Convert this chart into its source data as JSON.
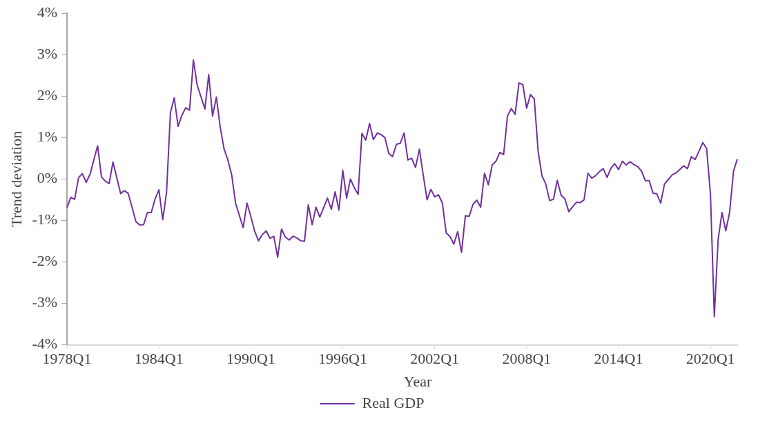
{
  "chart_data": {
    "type": "line",
    "xlabel": "Year",
    "ylabel": "Trend deviation",
    "categories": [
      "1978Q1",
      null,
      null,
      null,
      null,
      null,
      null,
      null,
      null,
      null,
      null,
      null,
      null,
      null,
      null,
      null,
      null,
      null,
      null,
      null,
      null,
      null,
      null,
      null,
      "1984Q1",
      null,
      null,
      null,
      null,
      null,
      null,
      null,
      null,
      null,
      null,
      null,
      null,
      null,
      null,
      null,
      null,
      null,
      null,
      null,
      null,
      null,
      null,
      null,
      "1990Q1",
      null,
      null,
      null,
      null,
      null,
      null,
      null,
      null,
      null,
      null,
      null,
      null,
      null,
      null,
      null,
      null,
      null,
      null,
      null,
      null,
      null,
      null,
      null,
      "1996Q1",
      null,
      null,
      null,
      null,
      null,
      null,
      null,
      null,
      null,
      null,
      null,
      null,
      null,
      null,
      null,
      null,
      null,
      null,
      null,
      null,
      null,
      null,
      null,
      "2002Q1",
      null,
      null,
      null,
      null,
      null,
      null,
      null,
      null,
      null,
      null,
      null,
      null,
      null,
      null,
      null,
      null,
      null,
      null,
      null,
      null,
      null,
      null,
      null,
      "2008Q1",
      null,
      null,
      null,
      null,
      null,
      null,
      null,
      null,
      null,
      null,
      null,
      null,
      null,
      null,
      null,
      null,
      null,
      null,
      null,
      null,
      null,
      null,
      null,
      "2014Q1",
      null,
      null,
      null,
      null,
      null,
      null,
      null,
      null,
      null,
      null,
      null,
      null,
      null,
      null,
      null,
      null,
      null,
      null,
      null,
      null,
      null,
      null,
      null,
      "2020Q1",
      null,
      null,
      null,
      null,
      null,
      null,
      null
    ],
    "series": [
      {
        "name": "Real GDP",
        "color": "#7030a0",
        "values": [
          -0.69,
          -0.44,
          -0.49,
          0.03,
          0.13,
          -0.08,
          0.11,
          0.46,
          0.8,
          0.05,
          -0.05,
          -0.11,
          0.41,
          0.03,
          -0.35,
          -0.28,
          -0.35,
          -0.69,
          -1.03,
          -1.11,
          -1.1,
          -0.81,
          -0.81,
          -0.48,
          -0.26,
          -0.98,
          -0.31,
          1.6,
          1.96,
          1.27,
          1.54,
          1.72,
          1.66,
          2.87,
          2.26,
          1.98,
          1.69,
          2.52,
          1.52,
          1.98,
          1.25,
          0.73,
          0.46,
          0.1,
          -0.58,
          -0.88,
          -1.17,
          -0.58,
          -0.91,
          -1.26,
          -1.49,
          -1.34,
          -1.25,
          -1.43,
          -1.38,
          -1.89,
          -1.21,
          -1.4,
          -1.47,
          -1.38,
          -1.42,
          -1.49,
          -1.5,
          -0.62,
          -1.1,
          -0.68,
          -0.92,
          -0.69,
          -0.46,
          -0.73,
          -0.31,
          -0.75,
          0.21,
          -0.46,
          0.0,
          -0.21,
          -0.37,
          1.1,
          0.94,
          1.34,
          0.95,
          1.11,
          1.07,
          1.0,
          0.62,
          0.54,
          0.84,
          0.86,
          1.11,
          0.46,
          0.5,
          0.28,
          0.72,
          0.1,
          -0.5,
          -0.25,
          -0.43,
          -0.38,
          -0.58,
          -1.3,
          -1.39,
          -1.57,
          -1.27,
          -1.77,
          -0.89,
          -0.9,
          -0.61,
          -0.51,
          -0.68,
          0.14,
          -0.14,
          0.34,
          0.43,
          0.64,
          0.59,
          1.52,
          1.7,
          1.56,
          2.32,
          2.28,
          1.71,
          2.04,
          1.93,
          0.67,
          0.08,
          -0.12,
          -0.52,
          -0.49,
          -0.03,
          -0.39,
          -0.48,
          -0.79,
          -0.67,
          -0.56,
          -0.57,
          -0.5,
          0.14,
          0.02,
          0.08,
          0.18,
          0.25,
          0.04,
          0.26,
          0.37,
          0.23,
          0.43,
          0.34,
          0.42,
          0.35,
          0.3,
          0.19,
          -0.04,
          -0.04,
          -0.34,
          -0.36,
          -0.58,
          -0.12,
          -0.01,
          0.1,
          0.15,
          0.23,
          0.32,
          0.25,
          0.54,
          0.47,
          0.67,
          0.88,
          0.73,
          -0.37,
          -3.32,
          -1.46,
          -0.81,
          -1.25,
          -0.8,
          0.18,
          0.48
        ]
      }
    ],
    "ylim": [
      -4,
      4
    ],
    "yticks": [
      {
        "value": -4,
        "label": "-4%"
      },
      {
        "value": -3,
        "label": "-3%"
      },
      {
        "value": -2,
        "label": "-2%"
      },
      {
        "value": -1,
        "label": "-1%"
      },
      {
        "value": 0,
        "label": "0%"
      },
      {
        "value": 1,
        "label": "1%"
      },
      {
        "value": 2,
        "label": "2%"
      },
      {
        "value": 3,
        "label": "3%"
      },
      {
        "value": 4,
        "label": "4%"
      }
    ],
    "legend": "bottom",
    "marker": "none",
    "line_style": "solid"
  }
}
